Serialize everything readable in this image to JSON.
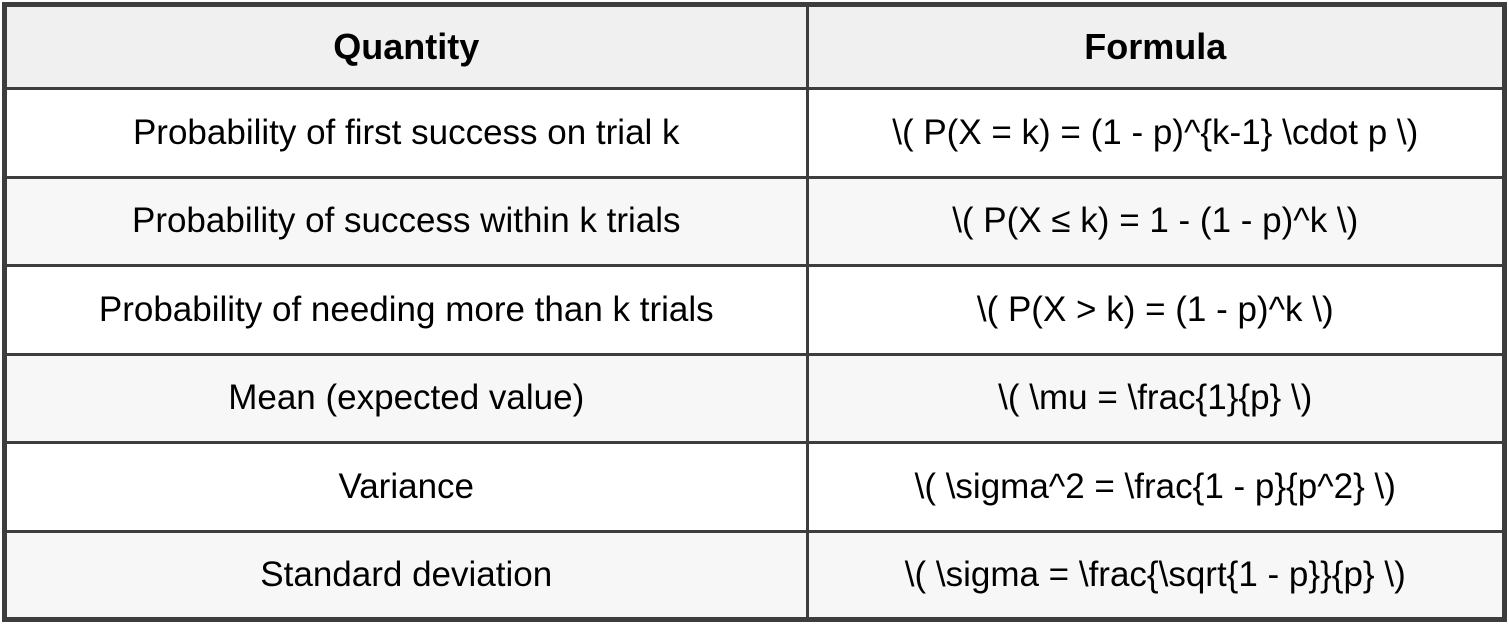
{
  "table": {
    "headers": {
      "quantity": "Quantity",
      "formula": "Formula"
    },
    "rows": [
      {
        "quantity": "Probability of first success on trial k",
        "formula": "\\( P(X = k) = (1 - p)^{k-1} \\cdot p \\)"
      },
      {
        "quantity": "Probability of success within k trials",
        "formula": "\\( P(X ≤ k) = 1 - (1 - p)^k \\)"
      },
      {
        "quantity": "Probability of needing more than k trials",
        "formula": "\\( P(X > k) = (1 - p)^k \\)"
      },
      {
        "quantity": "Mean (expected value)",
        "formula": "\\( \\mu = \\frac{1}{p} \\)"
      },
      {
        "quantity": "Variance",
        "formula": "\\( \\sigma^2 = \\frac{1 - p}{p^2} \\)"
      },
      {
        "quantity": "Standard deviation",
        "formula": "\\( \\sigma = \\frac{\\sqrt{1 - p}}{p} \\)"
      }
    ]
  },
  "colors": {
    "border": "#3d3d3d",
    "header_bg": "#f0f0f0",
    "row_bg": "#ffffff",
    "row_alt_bg": "#f7f7f7",
    "text": "#000000",
    "page_bg": "#ffffff"
  }
}
